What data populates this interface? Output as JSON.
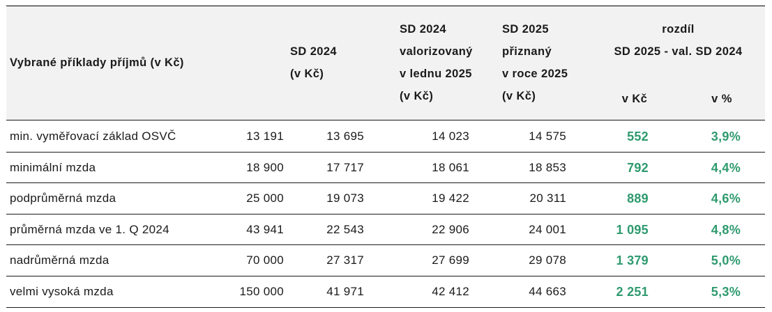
{
  "table": {
    "headers": {
      "label": "Vybrané příklady příjmů (v Kč)",
      "sd2024": [
        "SD 2024",
        "(v Kč)"
      ],
      "sd2024_val": [
        "SD 2024",
        "valorizovaný",
        "v lednu 2025",
        "(v Kč)"
      ],
      "sd2025": [
        "SD 2025",
        "přiznaný",
        "v roce 2025",
        "(v Kč)"
      ],
      "rozdil": [
        "rozdíl",
        "SD 2025 - val. SD 2024"
      ],
      "v_kc": "v Kč",
      "v_pct": "v %"
    },
    "rows": [
      {
        "label": "min. vyměřovací základ OSVČ",
        "income": "13 191",
        "sd2024": "13 695",
        "sd2024_val": "14 023",
        "sd2025": "14 575",
        "diff_kc": "552",
        "diff_pct": "3,9%"
      },
      {
        "label": "minimální mzda",
        "income": "18 900",
        "sd2024": "17 717",
        "sd2024_val": "18 061",
        "sd2025": "18 853",
        "diff_kc": "792",
        "diff_pct": "4,4%"
      },
      {
        "label": "podprůměrná mzda",
        "income": "25 000",
        "sd2024": "19 073",
        "sd2024_val": "19 422",
        "sd2025": "20 311",
        "diff_kc": "889",
        "diff_pct": "4,6%"
      },
      {
        "label": "průměrná mzda ve 1. Q 2024",
        "income": "43 941",
        "sd2024": "22 543",
        "sd2024_val": "22 906",
        "sd2025": "24 001",
        "diff_kc": "1 095",
        "diff_pct": "4,8%"
      },
      {
        "label": "nadrůměrná mzda",
        "income": "70 000",
        "sd2024": "27 317",
        "sd2024_val": "27 699",
        "sd2025": "29 078",
        "diff_kc": "1 379",
        "diff_pct": "5,0%"
      },
      {
        "label": "velmi vysoká mzda",
        "income": "150 000",
        "sd2024": "41 971",
        "sd2024_val": "42 412",
        "sd2025": "44 663",
        "diff_kc": "2 251",
        "diff_pct": "5,3%"
      }
    ]
  },
  "colors": {
    "accent_green": "#2e9a6e",
    "header_bg": "#f2f2f2"
  }
}
